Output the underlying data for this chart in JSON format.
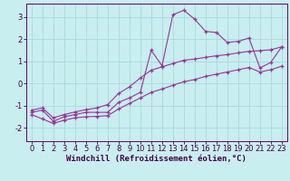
{
  "title": "",
  "xlabel": "Windchill (Refroidissement éolien,°C)",
  "ylabel": "",
  "background_color": "#c8eef0",
  "grid_color": "#a8d8dc",
  "line_color": "#993399",
  "spine_color": "#660066",
  "xlim": [
    -0.5,
    23.5
  ],
  "ylim": [
    -2.6,
    3.6
  ],
  "yticks": [
    -2,
    -1,
    0,
    1,
    2,
    3
  ],
  "xticks": [
    0,
    1,
    2,
    3,
    4,
    5,
    6,
    7,
    8,
    9,
    10,
    11,
    12,
    13,
    14,
    15,
    16,
    17,
    18,
    19,
    20,
    21,
    22,
    23
  ],
  "x_data": [
    0,
    1,
    2,
    3,
    4,
    5,
    6,
    7,
    8,
    9,
    10,
    11,
    12,
    13,
    14,
    15,
    16,
    17,
    18,
    19,
    20,
    21,
    22,
    23
  ],
  "y_main": [
    -1.3,
    -1.2,
    -1.7,
    -1.5,
    -1.4,
    -1.3,
    -1.3,
    -1.3,
    -0.85,
    -0.65,
    -0.4,
    1.5,
    0.8,
    3.1,
    3.3,
    2.9,
    2.35,
    2.3,
    1.85,
    1.9,
    2.05,
    0.7,
    0.95,
    1.65
  ],
  "y_upper": [
    -1.2,
    -1.1,
    -1.55,
    -1.4,
    -1.28,
    -1.18,
    -1.1,
    -0.95,
    -0.45,
    -0.15,
    0.25,
    0.6,
    0.75,
    0.9,
    1.05,
    1.1,
    1.18,
    1.25,
    1.3,
    1.38,
    1.45,
    1.48,
    1.52,
    1.65
  ],
  "y_lower": [
    -1.4,
    -1.6,
    -1.8,
    -1.65,
    -1.55,
    -1.5,
    -1.48,
    -1.45,
    -1.15,
    -0.9,
    -0.65,
    -0.4,
    -0.25,
    -0.08,
    0.08,
    0.18,
    0.32,
    0.42,
    0.52,
    0.62,
    0.72,
    0.52,
    0.62,
    0.78
  ],
  "xlabel_fontsize": 6.5,
  "tick_fontsize": 6.0,
  "linewidth": 0.8,
  "marker_size": 3.0
}
